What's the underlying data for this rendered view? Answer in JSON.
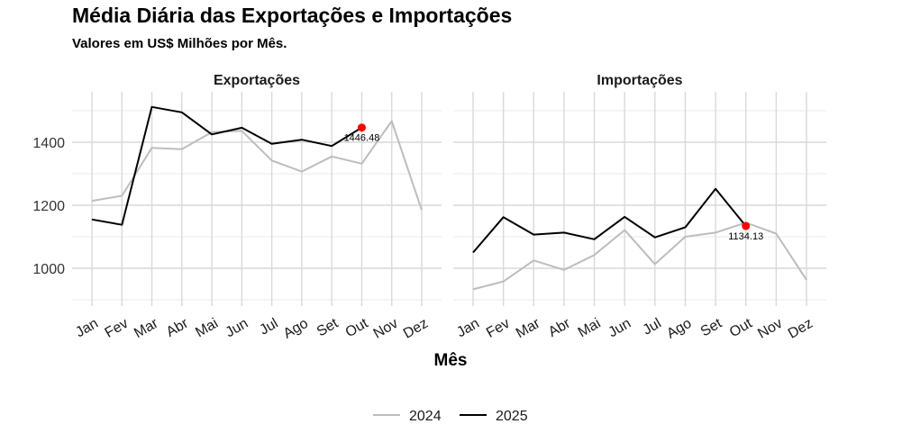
{
  "title": "Média Diária das Exportações e Importações",
  "subtitle": "Valores em US$ Milhões por Mês.",
  "chart_data": {
    "type": "line",
    "xlabel": "Mês",
    "ylabel": "",
    "categories": [
      "Jan",
      "Fev",
      "Mar",
      "Abr",
      "Mai",
      "Jun",
      "Jul",
      "Ago",
      "Set",
      "Out",
      "Nov",
      "Dez"
    ],
    "ylim": [
      880,
      1560
    ],
    "yticks": [
      1000,
      1200,
      1400
    ],
    "grid": true,
    "legend_position": "bottom",
    "colors": {
      "2024": "#bdbdbd",
      "2025": "#000000",
      "highlight": "#ff0000"
    },
    "panels": [
      {
        "name": "Exportações",
        "series": [
          {
            "name": "2024",
            "values": [
              1214,
              1230,
              1382,
              1378,
              1432,
              1436,
              1342,
              1307,
              1355,
              1332,
              1467,
              1185
            ]
          },
          {
            "name": "2025",
            "values": [
              1155,
              1138,
              1512,
              1495,
              1425,
              1446,
              1395,
              1408,
              1388,
              1446.48
            ]
          }
        ],
        "highlight": {
          "category": "Out",
          "value": 1446.48,
          "label": "1446.48"
        }
      },
      {
        "name": "Importações",
        "series": [
          {
            "name": "2024",
            "values": [
              933,
              958,
              1025,
              995,
              1042,
              1121,
              1013,
              1100,
              1113,
              1145,
              1110,
              963
            ]
          },
          {
            "name": "2025",
            "values": [
              1050,
              1162,
              1107,
              1113,
              1092,
              1163,
              1098,
              1130,
              1252,
              1134.13
            ]
          }
        ],
        "highlight": {
          "category": "Out",
          "value": 1134.13,
          "label": "1134.13"
        }
      }
    ]
  }
}
